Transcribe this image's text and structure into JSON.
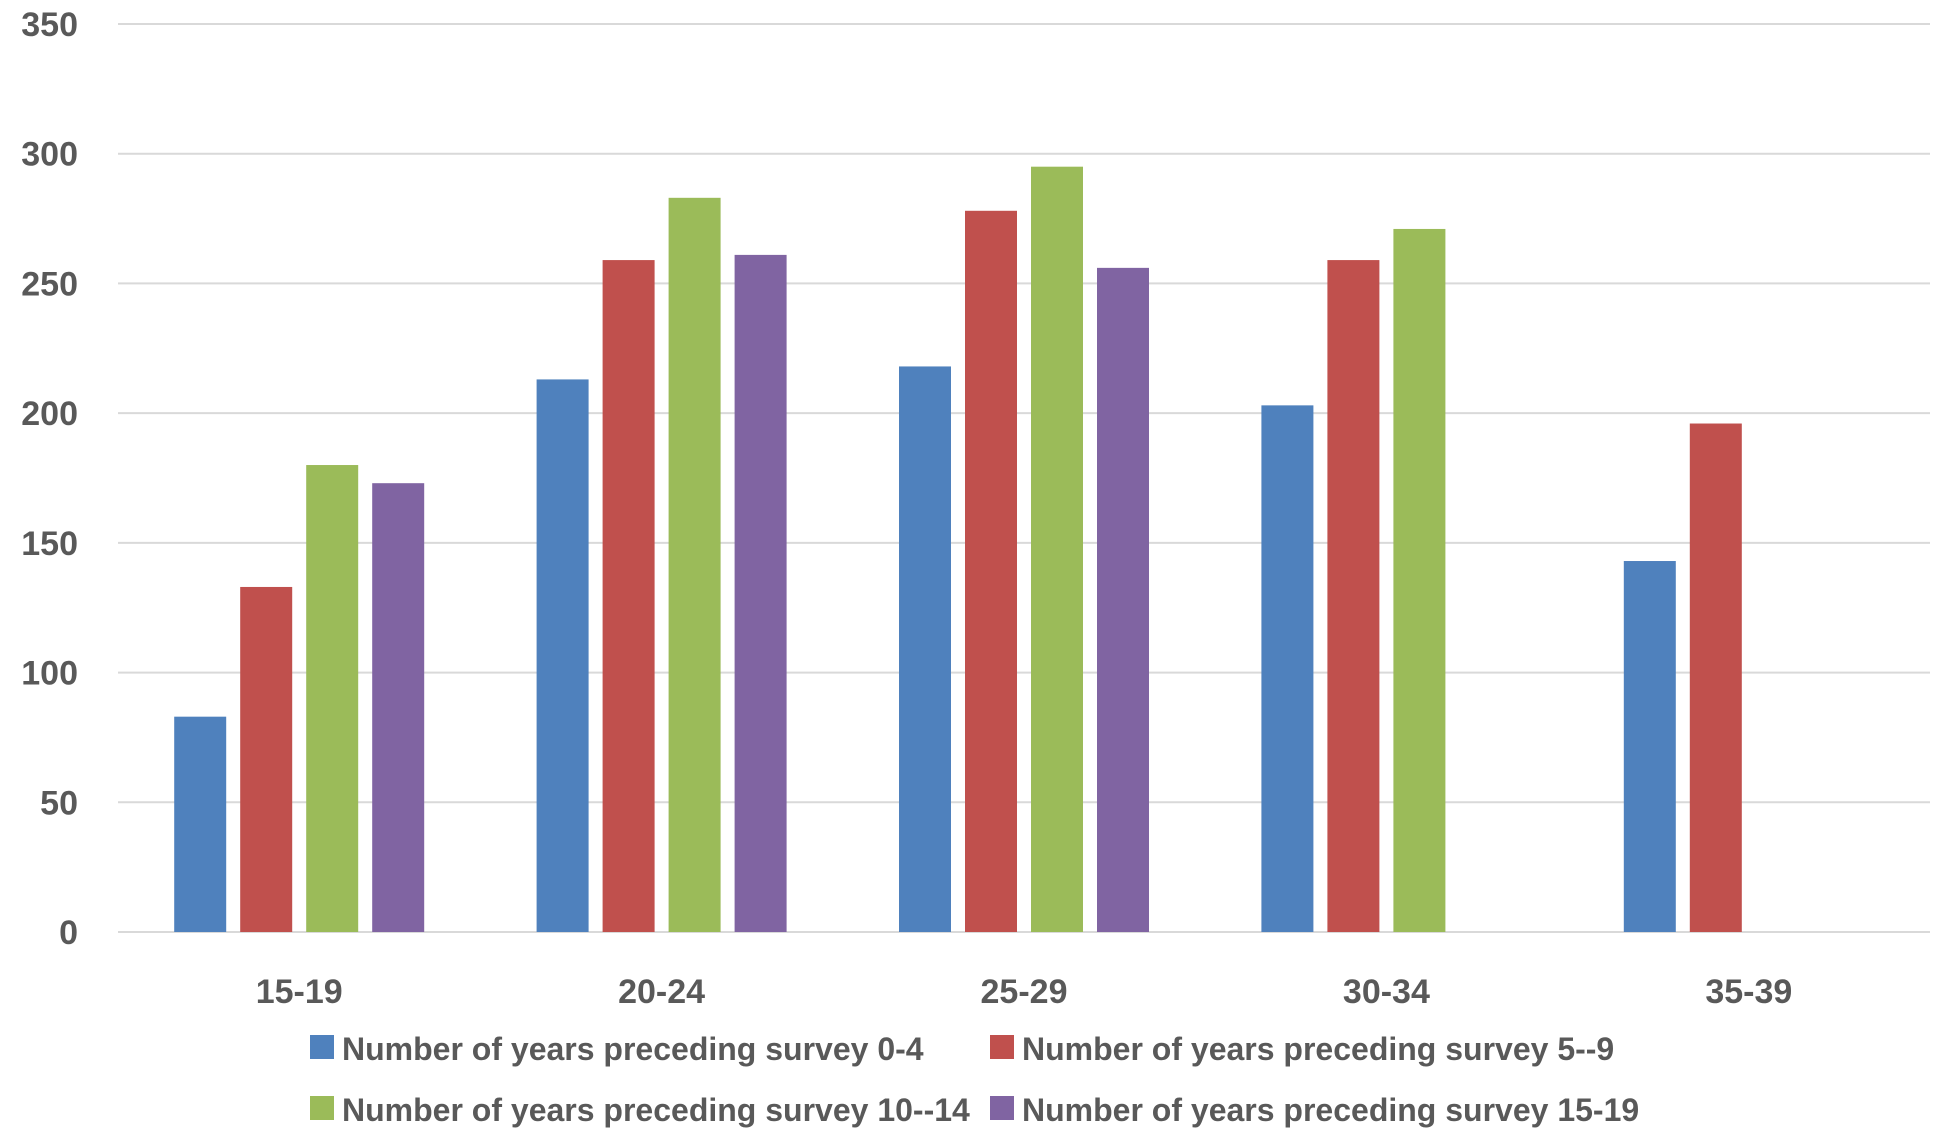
{
  "chart_data": {
    "type": "bar",
    "title": "",
    "xlabel": "",
    "ylabel": "",
    "ylim": [
      0,
      350
    ],
    "yticks": [
      "0",
      "50",
      "100",
      "150",
      "200",
      "250",
      "300",
      "350"
    ],
    "grid": true,
    "legend_position": "bottom",
    "categories": [
      "15-19",
      "20-24",
      "25-29",
      "30-34",
      "35-39"
    ],
    "series": [
      {
        "name": "Number of years preceding survey 0-4",
        "color": "#4f81bd",
        "values": [
          83,
          213,
          218,
          203,
          143
        ]
      },
      {
        "name": "Number of years preceding survey 5--9",
        "color": "#c0504d",
        "values": [
          133,
          259,
          278,
          259,
          196
        ]
      },
      {
        "name": "Number of years preceding survey 10--14",
        "color": "#9bbb59",
        "values": [
          180,
          283,
          295,
          271,
          null
        ]
      },
      {
        "name": "Number of years preceding survey 15-19",
        "color": "#8064a2",
        "values": [
          173,
          261,
          256,
          null,
          null
        ]
      }
    ]
  }
}
